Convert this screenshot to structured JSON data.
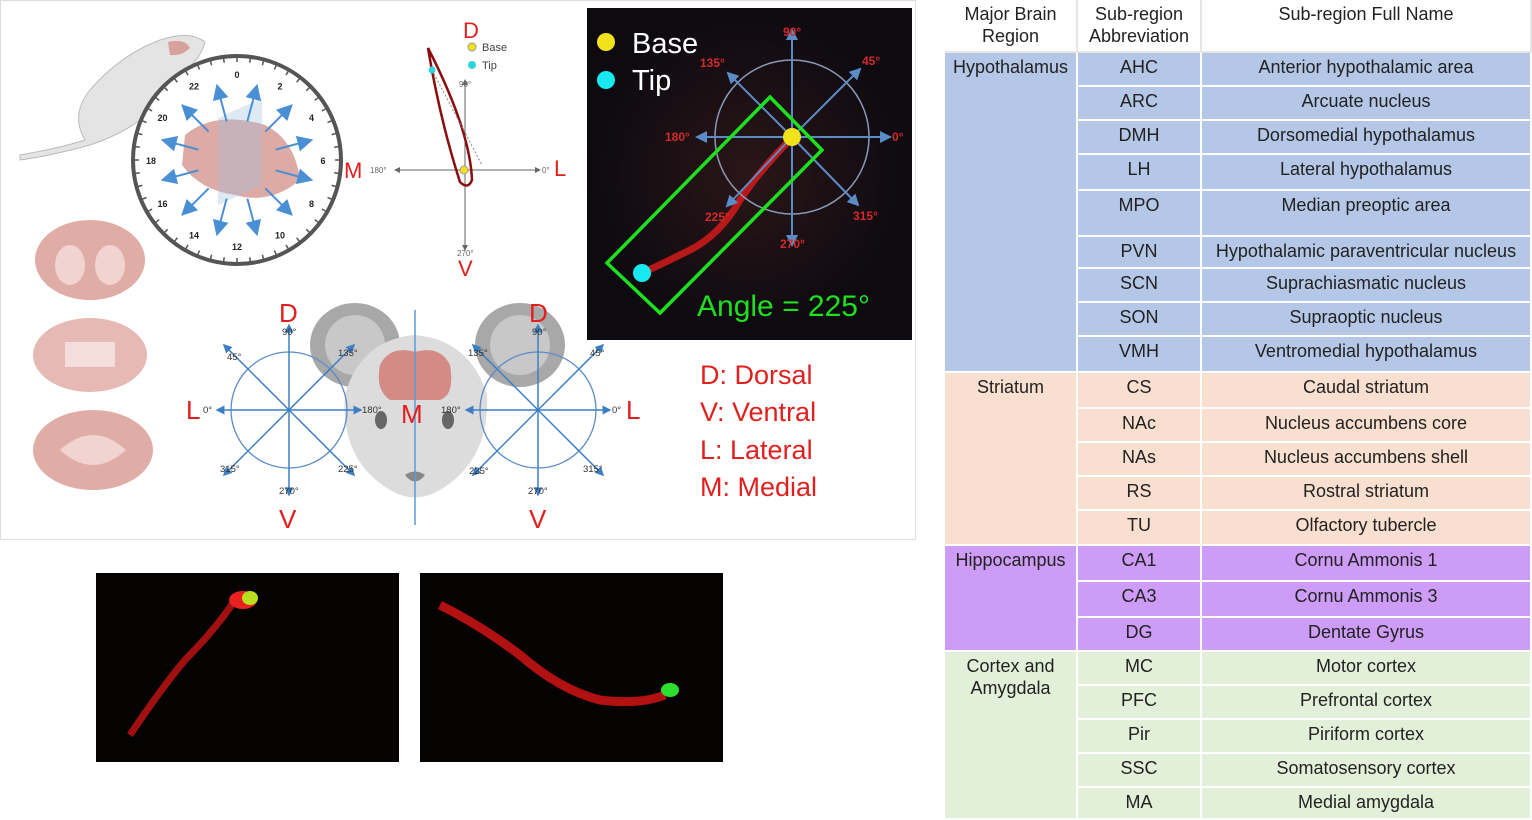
{
  "panel_a": {
    "clock_numbers": [
      "0",
      "2",
      "4",
      "6",
      "8",
      "10",
      "12",
      "14",
      "16",
      "18",
      "20",
      "22"
    ],
    "polar_small": {
      "D": "D",
      "V": "V",
      "M": "M",
      "L": "L",
      "a90": "90°",
      "a180": "180°",
      "a0": "0°",
      "a270": "270°",
      "legend_base": "Base",
      "legend_tip": "Tip"
    },
    "micrograph": {
      "legend_base": "Base",
      "legend_tip": "Tip",
      "a90": "90°",
      "a45": "45°",
      "a135": "135°",
      "a180": "180°",
      "a0": "0°",
      "a225": "225°",
      "a270": "270°",
      "a315": "315°",
      "angle_label": "Angle = 225°"
    },
    "face_diagram": {
      "D": "D",
      "V": "V",
      "L": "L",
      "M": "M",
      "a90": "90°",
      "a45": "45°",
      "a135": "135°",
      "a0": "0°",
      "a180": "180°",
      "a225": "225°",
      "a270": "270°",
      "a315": "315°"
    },
    "legend": [
      "D: Dorsal",
      "V: Ventral",
      "L: Lateral",
      "M: Medial"
    ]
  },
  "colors": {
    "hypothalamus": "#b4c7e7",
    "striatum": "#f9dfcf",
    "hippocampus": "#cc9cf7",
    "cortex": "#e2efd9",
    "red_label": "#e0201e",
    "green": "#1ee01e"
  },
  "table": {
    "headers": [
      "Major Brain\nRegion",
      "Sub-region\nAbbreviation",
      "Sub-region Full Name"
    ],
    "groups": [
      {
        "region": "Hypothalamus",
        "color": "hypothalamus",
        "rows": [
          [
            "AHC",
            "Anterior hypothalamic area"
          ],
          [
            "ARC",
            "Arcuate nucleus"
          ],
          [
            "DMH",
            "Dorsomedial hypothalamus"
          ],
          [
            "LH",
            "Lateral hypothalamus"
          ],
          [
            "MPO",
            "Median preoptic area"
          ],
          [
            "PVN",
            "Hypothalamic paraventricular nucleus"
          ],
          [
            "SCN",
            "Suprachiasmatic nucleus"
          ],
          [
            "SON",
            "Supraoptic nucleus"
          ],
          [
            "VMH",
            "Ventromedial hypothalamus"
          ]
        ]
      },
      {
        "region": "Striatum",
        "color": "striatum",
        "rows": [
          [
            "CS",
            "Caudal striatum"
          ],
          [
            "NAc",
            "Nucleus accumbens core"
          ],
          [
            "NAs",
            "Nucleus accumbens shell"
          ],
          [
            "RS",
            "Rostral striatum"
          ],
          [
            "TU",
            "Olfactory tubercle"
          ]
        ]
      },
      {
        "region": "Hippocampus",
        "color": "hippocampus",
        "rows": [
          [
            "CA1",
            "Cornu Ammonis 1"
          ],
          [
            "CA3",
            "Cornu Ammonis 3"
          ],
          [
            "DG",
            "Dentate Gyrus"
          ]
        ]
      },
      {
        "region": "Cortex and\nAmygdala",
        "color": "cortex",
        "rows": [
          [
            "MC",
            "Motor cortex"
          ],
          [
            "PFC",
            "Prefrontal cortex"
          ],
          [
            "Pir",
            "Piriform cortex"
          ],
          [
            "SSC",
            "Somatosensory cortex"
          ],
          [
            "MA",
            "Medial amygdala"
          ]
        ]
      }
    ]
  }
}
